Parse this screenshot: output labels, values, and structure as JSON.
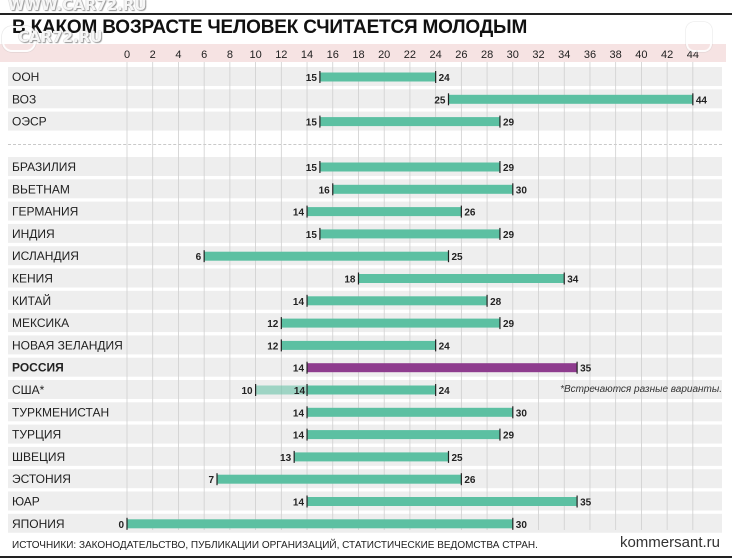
{
  "title": "В КАКОМ ВОЗРАСТЕ ЧЕЛОВЕК СЧИТАЕТСЯ МОЛОДЫМ",
  "watermark": {
    "line1": "WWW.CAR72.RU",
    "line2": "CAR72.RU"
  },
  "footnote": "*Встречаются разные варианты.",
  "footer": {
    "sources": "ИСТОЧНИКИ: ЗАКОНОДАТЕЛЬСТВО, ПУБЛИКАЦИИ ОРГАНИЗАЦИЙ, СТАТИСТИЧЕСКИЕ ВЕДОМСТВА СТРАН.",
    "site": "kommersant.ru"
  },
  "colors": {
    "bar": "#5cc0a2",
    "highlight": "#8e3c8e",
    "axis_band": "#f6e3e3",
    "row_band": "#eeeeee",
    "grid": "#cfcfcf"
  },
  "chart_data": {
    "type": "range-bar",
    "x_ticks": [
      0,
      2,
      4,
      6,
      8,
      10,
      12,
      14,
      16,
      18,
      20,
      22,
      24,
      26,
      28,
      30,
      32,
      34,
      36,
      38,
      40,
      42,
      44
    ],
    "xlim": [
      0,
      45
    ],
    "grid": true,
    "groups": [
      {
        "rows": [
          {
            "label": "ООН",
            "from": 15,
            "to": 24
          },
          {
            "label": "ВОЗ",
            "from": 25,
            "to": 44
          },
          {
            "label": "ОЭСР",
            "from": 15,
            "to": 29
          }
        ]
      },
      {
        "rows": [
          {
            "label": "БРАЗИЛИЯ",
            "from": 15,
            "to": 29
          },
          {
            "label": "ВЬЕТНАМ",
            "from": 16,
            "to": 30
          },
          {
            "label": "ГЕРМАНИЯ",
            "from": 14,
            "to": 26
          },
          {
            "label": "ИНДИЯ",
            "from": 15,
            "to": 29
          },
          {
            "label": "ИСЛАНДИЯ",
            "from": 6,
            "to": 25
          },
          {
            "label": "КЕНИЯ",
            "from": 18,
            "to": 34
          },
          {
            "label": "КИТАЙ",
            "from": 14,
            "to": 28
          },
          {
            "label": "МЕКСИКА",
            "from": 12,
            "to": 29
          },
          {
            "label": "НОВАЯ ЗЕЛАНДИЯ",
            "from": 12,
            "to": 24
          },
          {
            "label": "РОССИЯ",
            "from": 14,
            "to": 35,
            "highlight": true
          },
          {
            "label": "США*",
            "from": 14,
            "to": 24,
            "alt_from": 10
          },
          {
            "label": "ТУРКМЕНИСТАН",
            "from": 14,
            "to": 30
          },
          {
            "label": "ТУРЦИЯ",
            "from": 14,
            "to": 29
          },
          {
            "label": "ШВЕЦИЯ",
            "from": 13,
            "to": 25
          },
          {
            "label": "ЭСТОНИЯ",
            "from": 7,
            "to": 26
          },
          {
            "label": "ЮАР",
            "from": 14,
            "to": 35
          },
          {
            "label": "ЯПОНИЯ",
            "from": 0,
            "to": 30
          }
        ]
      }
    ]
  }
}
